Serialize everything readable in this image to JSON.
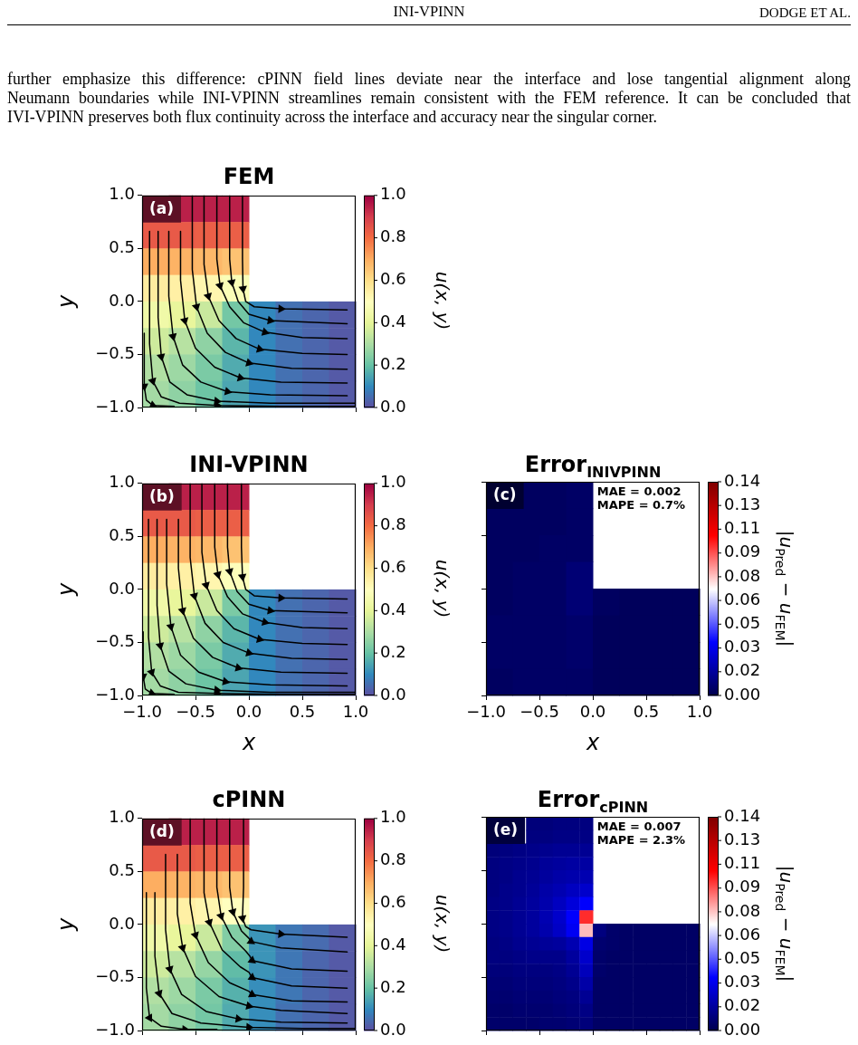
{
  "chart_data": [
    {
      "type": "heatmap",
      "title": "FEM",
      "ylabel": "y",
      "clabel": "u(x, y)",
      "tick_labels": "y",
      "annotations": [
        "(a)",
        "INI-VPINN",
        "DODGE ET AL.",
        "further emphasize this difference: cPINN field lines deviate near the interface and lose tangential alignment along",
        "Neumann boundaries while INI-VPINN streamlines remain consistent with the FEM reference. It can be concluded that",
        "IVI-VPINN preserves both flux continuity across the interface and accuracy near the singular corner."
      ],
      "x": [
        -0.875,
        -0.625,
        -0.375,
        -0.125,
        0.125,
        0.375,
        0.625,
        0.875
      ],
      "xlim": [
        -1,
        1
      ],
      "xticks": [
        {
          "value": -1,
          "label": null
        },
        {
          "value": -0.5,
          "label": null
        },
        {
          "value": 0,
          "label": null
        },
        {
          "value": 0.5,
          "label": null
        },
        {
          "value": 1,
          "label": null
        }
      ],
      "ylim": [
        -1,
        1
      ],
      "yticks": [
        {
          "value": -1,
          "label": "−1.0"
        },
        {
          "value": -0.5,
          "label": "−0.5"
        },
        {
          "value": 0,
          "label": "0.0"
        },
        {
          "value": 0.5,
          "label": "0.5"
        },
        {
          "value": 1,
          "label": "1.0"
        }
      ],
      "clim": [
        0,
        1
      ],
      "cticks": [
        {
          "value": 0,
          "label": "0.0"
        },
        {
          "value": 0.2,
          "label": "0.2"
        },
        {
          "value": 0.4,
          "label": "0.4"
        },
        {
          "value": 0.6,
          "label": "0.6"
        },
        {
          "value": 0.8,
          "label": "0.8"
        },
        {
          "value": 1,
          "label": "1.0"
        }
      ],
      "colors": [
        "#5e4fa2",
        "#3288bd",
        "#66c2a5",
        "#abdda4",
        "#e6f598",
        "#ffffbf",
        "#fee08b",
        "#fdae61",
        "#f46d43",
        "#d53e4f",
        "#9e0142"
      ],
      "cells": [
        [
          null,
          0.95,
          0.95,
          0.95,
          null,
          null,
          null,
          null
        ],
        [
          0.84,
          0.84,
          0.83,
          0.83,
          null,
          null,
          null,
          null
        ],
        [
          0.7,
          0.69,
          0.68,
          0.66,
          null,
          null,
          null,
          null
        ],
        [
          0.56,
          0.55,
          0.53,
          0.48,
          null,
          null,
          null,
          null
        ],
        [
          0.44,
          0.41,
          0.35,
          0.22,
          0.1,
          0.06,
          0.04,
          0.02
        ],
        [
          0.36,
          0.32,
          0.26,
          0.18,
          0.1,
          0.06,
          0.04,
          0.02
        ],
        [
          0.31,
          0.28,
          0.23,
          0.16,
          0.1,
          0.06,
          0.04,
          0.02
        ],
        [
          0.29,
          0.26,
          0.21,
          0.15,
          0.1,
          0.06,
          0.04,
          0.02
        ]
      ],
      "series": [
        {
          "type": "line",
          "color": "#000000",
          "x": [
            -0.06,
            -0.06,
            -0.055,
            -0.03,
            0.05,
            0.3,
            0.92
          ],
          "values": [
            1,
            0.4,
            0.12,
            0,
            -0.05,
            -0.07,
            -0.08
          ]
        },
        {
          "type": "line",
          "color": "#000000",
          "x": [
            -0.18,
            -0.18,
            -0.16,
            -0.1,
            0,
            0.2,
            0.92
          ],
          "values": [
            1,
            0.4,
            0.18,
            0,
            -0.12,
            -0.18,
            -0.21
          ]
        },
        {
          "type": "line",
          "color": "#000000",
          "x": [
            -0.3,
            -0.3,
            -0.27,
            -0.18,
            -0.05,
            0.15,
            0.5,
            0.92
          ],
          "values": [
            1,
            0.4,
            0.15,
            -0.05,
            -0.2,
            -0.29,
            -0.34,
            -0.35
          ]
        },
        {
          "type": "line",
          "color": "#000000",
          "x": [
            -0.42,
            -0.42,
            -0.38,
            -0.28,
            -0.12,
            0.1,
            0.5,
            0.92
          ],
          "values": [
            1,
            0.35,
            0.05,
            -0.18,
            -0.35,
            -0.45,
            -0.49,
            -0.5
          ]
        },
        {
          "type": "line",
          "color": "#000000",
          "x": [
            -0.53,
            -0.53,
            -0.49,
            -0.39,
            -0.22,
            0,
            0.4,
            0.92
          ],
          "values": [
            1,
            0.3,
            -0.05,
            -0.3,
            -0.48,
            -0.58,
            -0.63,
            -0.64
          ]
        },
        {
          "type": "line",
          "color": "#000000",
          "x": [
            -0.64,
            -0.64,
            -0.6,
            -0.5,
            -0.32,
            -0.08,
            0.3,
            0.92
          ],
          "values": [
            0.66,
            0.2,
            -0.18,
            -0.44,
            -0.62,
            -0.72,
            -0.76,
            -0.77
          ]
        },
        {
          "type": "line",
          "color": "#000000",
          "x": [
            -0.75,
            -0.75,
            -0.71,
            -0.62,
            -0.45,
            -0.2,
            0.2,
            0.92
          ],
          "values": [
            0.66,
            0.05,
            -0.33,
            -0.6,
            -0.76,
            -0.85,
            -0.88,
            -0.89
          ]
        },
        {
          "type": "line",
          "color": "#000000",
          "x": [
            -0.85,
            -0.85,
            -0.82,
            -0.74,
            -0.58,
            -0.3,
            0.2,
            1
          ],
          "values": [
            0.66,
            -0.15,
            -0.52,
            -0.76,
            -0.88,
            -0.94,
            -0.96,
            -0.96
          ]
        },
        {
          "type": "line",
          "color": "#000000",
          "x": [
            -0.93,
            -0.93,
            -0.9,
            -0.82,
            -0.65,
            -0.3,
            0.3,
            1
          ],
          "values": [
            0.66,
            -0.4,
            -0.75,
            -0.9,
            -0.96,
            -0.98,
            -0.99,
            -0.99
          ]
        },
        {
          "type": "line",
          "color": "#000000",
          "x": [
            -0.98,
            -0.98,
            -0.96,
            -0.9,
            -0.7
          ],
          "values": [
            -0.3,
            -0.8,
            -0.93,
            -0.98,
            -0.99
          ]
        }
      ]
    },
    {
      "type": "heatmap",
      "title": "INI-VPINN",
      "xlabel": "x",
      "ylabel": "y",
      "clabel": "u(x, y)",
      "annotations": [
        "(b)"
      ],
      "x": [
        -0.875,
        -0.625,
        -0.375,
        -0.125,
        0.125,
        0.375,
        0.625,
        0.875
      ],
      "xlim": [
        -1,
        1
      ],
      "xticks": [
        {
          "value": -1,
          "label": "−1.0"
        },
        {
          "value": -0.5,
          "label": "−0.5"
        },
        {
          "value": 0,
          "label": "0.0"
        },
        {
          "value": 0.5,
          "label": "0.5"
        },
        {
          "value": 1,
          "label": "1.0"
        }
      ],
      "ylim": [
        -1,
        1
      ],
      "yticks": [
        {
          "value": -1,
          "label": "−1.0"
        },
        {
          "value": -0.5,
          "label": "−0.5"
        },
        {
          "value": 0,
          "label": "0.0"
        },
        {
          "value": 0.5,
          "label": "0.5"
        },
        {
          "value": 1,
          "label": "1.0"
        }
      ],
      "clim": [
        0,
        1
      ],
      "cticks": [
        {
          "value": 0,
          "label": "0.0"
        },
        {
          "value": 0.2,
          "label": "0.2"
        },
        {
          "value": 0.4,
          "label": "0.4"
        },
        {
          "value": 0.6,
          "label": "0.6"
        },
        {
          "value": 0.8,
          "label": "0.8"
        },
        {
          "value": 1,
          "label": "1.0"
        }
      ],
      "colors": [
        "#5e4fa2",
        "#3288bd",
        "#66c2a5",
        "#abdda4",
        "#e6f598",
        "#ffffbf",
        "#fee08b",
        "#fdae61",
        "#f46d43",
        "#d53e4f",
        "#9e0142"
      ],
      "cells": [
        [
          null,
          0.95,
          0.95,
          0.95,
          null,
          null,
          null,
          null
        ],
        [
          0.84,
          0.84,
          0.83,
          0.83,
          null,
          null,
          null,
          null
        ],
        [
          0.7,
          0.69,
          0.68,
          0.66,
          null,
          null,
          null,
          null
        ],
        [
          0.56,
          0.55,
          0.53,
          0.49,
          null,
          null,
          null,
          null
        ],
        [
          0.44,
          0.41,
          0.35,
          0.23,
          0.1,
          0.06,
          0.04,
          0.02
        ],
        [
          0.36,
          0.32,
          0.26,
          0.18,
          0.1,
          0.06,
          0.04,
          0.02
        ],
        [
          0.31,
          0.28,
          0.23,
          0.16,
          0.1,
          0.06,
          0.04,
          0.02
        ],
        [
          0.29,
          0.26,
          0.21,
          0.15,
          0.1,
          0.06,
          0.04,
          0.02
        ]
      ],
      "series": [
        {
          "type": "line",
          "color": "#000000",
          "x": [
            -0.07,
            -0.07,
            -0.06,
            -0.03,
            0.05,
            0.3,
            0.92
          ],
          "values": [
            1,
            0.4,
            0.12,
            0,
            -0.06,
            -0.08,
            -0.09
          ]
        },
        {
          "type": "line",
          "color": "#000000",
          "x": [
            -0.2,
            -0.2,
            -0.18,
            -0.11,
            0,
            0.2,
            0.92
          ],
          "values": [
            1,
            0.4,
            0.17,
            -0.02,
            -0.14,
            -0.2,
            -0.22
          ]
        },
        {
          "type": "line",
          "color": "#000000",
          "x": [
            -0.32,
            -0.32,
            -0.29,
            -0.2,
            -0.06,
            0.15,
            0.5,
            0.92
          ],
          "values": [
            1,
            0.4,
            0.14,
            -0.07,
            -0.23,
            -0.31,
            -0.36,
            -0.37
          ]
        },
        {
          "type": "line",
          "color": "#000000",
          "x": [
            -0.44,
            -0.44,
            -0.4,
            -0.3,
            -0.14,
            0.1,
            0.5,
            0.92
          ],
          "values": [
            1,
            0.35,
            0.04,
            -0.2,
            -0.37,
            -0.47,
            -0.51,
            -0.52
          ]
        },
        {
          "type": "line",
          "color": "#000000",
          "x": [
            -0.55,
            -0.55,
            -0.51,
            -0.41,
            -0.24,
            0,
            0.4,
            0.92
          ],
          "values": [
            1,
            0.3,
            -0.06,
            -0.32,
            -0.5,
            -0.6,
            -0.65,
            -0.66
          ]
        },
        {
          "type": "line",
          "color": "#000000",
          "x": [
            -0.66,
            -0.66,
            -0.62,
            -0.52,
            -0.34,
            -0.1,
            0.3,
            0.92
          ],
          "values": [
            0.66,
            0.2,
            -0.2,
            -0.46,
            -0.64,
            -0.74,
            -0.78,
            -0.79
          ]
        },
        {
          "type": "line",
          "color": "#000000",
          "x": [
            -0.77,
            -0.77,
            -0.73,
            -0.64,
            -0.47,
            -0.22,
            0.2,
            0.92
          ],
          "values": [
            0.66,
            0.05,
            -0.35,
            -0.62,
            -0.78,
            -0.87,
            -0.9,
            -0.91
          ]
        },
        {
          "type": "line",
          "color": "#000000",
          "x": [
            -0.86,
            -0.86,
            -0.83,
            -0.75,
            -0.59,
            -0.3,
            0.2,
            1
          ],
          "values": [
            0.66,
            -0.15,
            -0.53,
            -0.77,
            -0.89,
            -0.95,
            -0.97,
            -0.97
          ]
        },
        {
          "type": "line",
          "color": "#000000",
          "x": [
            -0.94,
            -0.94,
            -0.91,
            -0.83,
            -0.66,
            -0.3,
            0.3,
            1
          ],
          "values": [
            0.66,
            -0.45,
            -0.78,
            -0.91,
            -0.97,
            -0.98,
            -0.99,
            -0.99
          ]
        },
        {
          "type": "line",
          "color": "#000000",
          "x": [
            -0.99,
            -0.99,
            -0.97,
            -0.91,
            -0.7
          ],
          "values": [
            -0.4,
            -0.82,
            -0.94,
            -0.98,
            -0.99
          ]
        }
      ]
    },
    {
      "type": "heatmap",
      "title": "Error$_{INIVPINN}$",
      "xlabel": "x",
      "clabel": "|u$_{Pred}$ − u$_{FEM}$|",
      "tick_labels": "x",
      "annotations": [
        "(c)",
        "MAE = 0.002",
        "MAPE = 0.7%"
      ],
      "x": [
        -0.875,
        -0.625,
        -0.375,
        -0.125,
        0.125,
        0.375,
        0.625,
        0.875
      ],
      "xlim": [
        -1,
        1
      ],
      "xticks": [
        {
          "value": -1,
          "label": "−1.0"
        },
        {
          "value": -0.5,
          "label": "−0.5"
        },
        {
          "value": 0,
          "label": "0.0"
        },
        {
          "value": 0.5,
          "label": "0.5"
        },
        {
          "value": 1,
          "label": "1.0"
        }
      ],
      "ylim": [
        -1,
        1
      ],
      "yticks": [
        {
          "value": -1,
          "label": null
        },
        {
          "value": -0.5,
          "label": null
        },
        {
          "value": 0,
          "label": null
        },
        {
          "value": 0.5,
          "label": null
        },
        {
          "value": 1,
          "label": null
        }
      ],
      "clim": [
        0,
        0.1415
      ],
      "cticks": [
        {
          "value": 0,
          "label": "0.00"
        },
        {
          "value": 0.0157,
          "label": "0.02"
        },
        {
          "value": 0.0314,
          "label": "0.03"
        },
        {
          "value": 0.0472,
          "label": "0.05"
        },
        {
          "value": 0.0629,
          "label": "0.06"
        },
        {
          "value": 0.0786,
          "label": "0.08"
        },
        {
          "value": 0.0943,
          "label": "0.09"
        },
        {
          "value": 0.1101,
          "label": "0.11"
        },
        {
          "value": 0.1258,
          "label": "0.13"
        },
        {
          "value": 0.1415,
          "label": "0.14"
        }
      ],
      "colors": [
        "#00004c",
        "#0000ff",
        "#ffffff",
        "#ff0000",
        "#800000"
      ],
      "cells": [
        [
          null,
          0.004,
          0.004,
          0.005,
          null,
          null,
          null,
          null
        ],
        [
          0.004,
          0.004,
          0.004,
          0.005,
          null,
          null,
          null,
          null
        ],
        [
          0.004,
          0.004,
          0.005,
          0.005,
          null,
          null,
          null,
          null
        ],
        [
          0.004,
          0.005,
          0.005,
          0.008,
          null,
          null,
          null,
          null
        ],
        [
          0.004,
          0.005,
          0.005,
          0.008,
          0.004,
          0.003,
          0.003,
          0.003
        ],
        [
          0.005,
          0.005,
          0.005,
          0.006,
          0.003,
          0.003,
          0.003,
          0.003
        ],
        [
          0.005,
          0.005,
          0.005,
          0.006,
          0.003,
          0.003,
          0.003,
          0.003
        ],
        [
          0.004,
          0.005,
          0.005,
          0.005,
          0.003,
          0.003,
          0.003,
          0.003
        ]
      ]
    },
    {
      "type": "heatmap",
      "title": "cPINN",
      "ylabel": "y",
      "clabel": "u(x, y)",
      "tick_labels": "y",
      "annotations": [
        "(d)"
      ],
      "x": [
        -0.875,
        -0.625,
        -0.375,
        -0.125,
        0.125,
        0.375,
        0.625,
        0.875
      ],
      "xlim": [
        -1,
        1
      ],
      "xticks": [
        {
          "value": -1,
          "label": null
        },
        {
          "value": -0.5,
          "label": null
        },
        {
          "value": 0,
          "label": null
        },
        {
          "value": 0.5,
          "label": null
        },
        {
          "value": 1,
          "label": null
        }
      ],
      "ylim": [
        -1,
        1
      ],
      "yticks": [
        {
          "value": -1,
          "label": "−1.0"
        },
        {
          "value": -0.5,
          "label": "−0.5"
        },
        {
          "value": 0,
          "label": "0.0"
        },
        {
          "value": 0.5,
          "label": "0.5"
        },
        {
          "value": 1,
          "label": "1.0"
        }
      ],
      "clim": [
        0,
        1
      ],
      "cticks": [
        {
          "value": 0,
          "label": "0.0"
        },
        {
          "value": 0.2,
          "label": "0.2"
        },
        {
          "value": 0.4,
          "label": "0.4"
        },
        {
          "value": 0.6,
          "label": "0.6"
        },
        {
          "value": 0.8,
          "label": "0.8"
        },
        {
          "value": 1,
          "label": "1.0"
        }
      ],
      "colors": [
        "#5e4fa2",
        "#3288bd",
        "#66c2a5",
        "#abdda4",
        "#e6f598",
        "#ffffbf",
        "#fee08b",
        "#fdae61",
        "#f46d43",
        "#d53e4f",
        "#9e0142"
      ],
      "cells": [
        [
          null,
          0.95,
          0.95,
          0.95,
          null,
          null,
          null,
          null
        ],
        [
          0.84,
          0.84,
          0.83,
          0.83,
          null,
          null,
          null,
          null
        ],
        [
          0.7,
          0.69,
          0.68,
          0.66,
          null,
          null,
          null,
          null
        ],
        [
          0.56,
          0.55,
          0.53,
          0.5,
          null,
          null,
          null,
          null
        ],
        [
          0.44,
          0.41,
          0.35,
          0.24,
          0.12,
          0.07,
          0.05,
          0.02
        ],
        [
          0.36,
          0.32,
          0.27,
          0.19,
          0.12,
          0.07,
          0.04,
          0.02
        ],
        [
          0.31,
          0.28,
          0.23,
          0.17,
          0.11,
          0.07,
          0.04,
          0.02
        ],
        [
          0.29,
          0.26,
          0.22,
          0.16,
          0.11,
          0.06,
          0.04,
          0.02
        ]
      ],
      "series": [
        {
          "type": "line",
          "color": "#000000",
          "x": [
            -0.05,
            -0.05,
            -0.06,
            -0.03,
            0.02,
            0.3,
            0.92
          ],
          "values": [
            1,
            0.35,
            0.06,
            -0.02,
            -0.05,
            -0.09,
            -0.12
          ]
        },
        {
          "type": "line",
          "color": "#000000",
          "x": [
            -0.18,
            -0.18,
            -0.15,
            -0.07,
            0,
            0.02,
            0.3,
            0.92
          ],
          "values": [
            1,
            0.35,
            0.12,
            -0.06,
            -0.13,
            -0.16,
            -0.22,
            -0.26
          ]
        },
        {
          "type": "line",
          "color": "#000000",
          "x": [
            -0.3,
            -0.3,
            -0.26,
            -0.16,
            -0.03,
            0.01,
            0.03,
            0.4,
            0.92
          ],
          "values": [
            1,
            0.35,
            0.08,
            -0.12,
            -0.25,
            -0.3,
            -0.34,
            -0.42,
            -0.44
          ]
        },
        {
          "type": "line",
          "color": "#000000",
          "x": [
            -0.42,
            -0.42,
            -0.37,
            -0.25,
            -0.08,
            0,
            0.03,
            0.4,
            0.92
          ],
          "values": [
            1,
            0.3,
            0.02,
            -0.24,
            -0.4,
            -0.45,
            -0.5,
            -0.58,
            -0.6
          ]
        },
        {
          "type": "line",
          "color": "#000000",
          "x": [
            -0.55,
            -0.55,
            -0.5,
            -0.38,
            -0.18,
            0,
            0.03,
            0.4,
            0.92
          ],
          "values": [
            1,
            0.2,
            -0.1,
            -0.36,
            -0.55,
            -0.63,
            -0.66,
            -0.72,
            -0.73
          ]
        },
        {
          "type": "line",
          "color": "#000000",
          "x": [
            -0.67,
            -0.67,
            -0.62,
            -0.5,
            -0.28,
            0,
            0.3,
            0.92
          ],
          "values": [
            0.66,
            0.1,
            -0.22,
            -0.49,
            -0.68,
            -0.77,
            -0.81,
            -0.84
          ]
        },
        {
          "type": "line",
          "color": "#000000",
          "x": [
            -0.78,
            -0.78,
            -0.74,
            -0.63,
            -0.4,
            -0.1,
            0.3,
            0.92
          ],
          "values": [
            0.66,
            -0.05,
            -0.42,
            -0.66,
            -0.82,
            -0.89,
            -0.92,
            -0.93
          ]
        },
        {
          "type": "line",
          "color": "#000000",
          "x": [
            -0.88,
            -0.88,
            -0.84,
            -0.72,
            -0.45,
            0,
            0.5,
            1
          ],
          "values": [
            0.3,
            -0.3,
            -0.65,
            -0.84,
            -0.93,
            -0.97,
            -0.98,
            -0.98
          ]
        },
        {
          "type": "line",
          "color": "#000000",
          "x": [
            -0.96,
            -0.96,
            -0.93,
            -0.82,
            -0.6,
            -0.3
          ],
          "values": [
            0.3,
            -0.6,
            -0.88,
            -0.96,
            -0.99,
            -0.99
          ]
        }
      ]
    },
    {
      "type": "heatmap",
      "title": "Error$_{cPINN}$",
      "clabel": "|u$_{Pred}$ − u$_{FEM}$|",
      "tick_labels": false,
      "annotations": [
        "(e)",
        "MAE = 0.007",
        "MAPE = 2.3%"
      ],
      "x": [
        -0.9375,
        -0.8125,
        -0.6875,
        -0.5625,
        -0.4375,
        -0.3125,
        -0.1875,
        -0.0625,
        0.0625,
        0.1875,
        0.3125,
        0.4375,
        0.5625,
        0.6875,
        0.8125,
        0.9375
      ],
      "xlim": [
        -1,
        1
      ],
      "xticks": [
        {
          "value": -1,
          "label": null
        },
        {
          "value": -0.5,
          "label": null
        },
        {
          "value": 0,
          "label": null
        },
        {
          "value": 0.5,
          "label": null
        },
        {
          "value": 1,
          "label": null
        }
      ],
      "ylim": [
        -1,
        1
      ],
      "yticks": [
        {
          "value": -1,
          "label": null
        },
        {
          "value": -0.5,
          "label": null
        },
        {
          "value": 0,
          "label": null
        },
        {
          "value": 0.5,
          "label": null
        },
        {
          "value": 1,
          "label": null
        }
      ],
      "clim": [
        0,
        0.1415
      ],
      "cticks": [
        {
          "value": 0,
          "label": "0.00"
        },
        {
          "value": 0.0157,
          "label": "0.02"
        },
        {
          "value": 0.0314,
          "label": "0.03"
        },
        {
          "value": 0.0472,
          "label": "0.05"
        },
        {
          "value": 0.0629,
          "label": "0.06"
        },
        {
          "value": 0.0786,
          "label": "0.08"
        },
        {
          "value": 0.0943,
          "label": "0.09"
        },
        {
          "value": 0.1101,
          "label": "0.11"
        },
        {
          "value": 0.1258,
          "label": "0.13"
        },
        {
          "value": 0.1415,
          "label": "0.14"
        }
      ],
      "colors": [
        "#00004c",
        "#0000ff",
        "#ffffff",
        "#ff0000",
        "#800000"
      ],
      "cells": [
        [
          null,
          null,
          null,
          0.009,
          0.009,
          0.01,
          0.01,
          0.01,
          null,
          null,
          null,
          null,
          null,
          null,
          null,
          null
        ],
        [
          null,
          null,
          null,
          0.01,
          0.01,
          0.011,
          0.011,
          0.011,
          null,
          null,
          null,
          null,
          null,
          null,
          null,
          null
        ],
        [
          0.009,
          0.01,
          0.011,
          0.012,
          0.013,
          0.014,
          0.014,
          0.014,
          null,
          null,
          null,
          null,
          null,
          null,
          null,
          null
        ],
        [
          0.01,
          0.011,
          0.012,
          0.013,
          0.015,
          0.016,
          0.017,
          0.017,
          null,
          null,
          null,
          null,
          null,
          null,
          null,
          null
        ],
        [
          0.01,
          0.011,
          0.013,
          0.014,
          0.016,
          0.018,
          0.019,
          0.02,
          null,
          null,
          null,
          null,
          null,
          null,
          null,
          null
        ],
        [
          0.01,
          0.012,
          0.013,
          0.015,
          0.018,
          0.02,
          0.023,
          0.025,
          null,
          null,
          null,
          null,
          null,
          null,
          null,
          null
        ],
        [
          0.011,
          0.012,
          0.014,
          0.016,
          0.019,
          0.023,
          0.028,
          0.035,
          null,
          null,
          null,
          null,
          null,
          null,
          null,
          null
        ],
        [
          0.011,
          0.012,
          0.014,
          0.016,
          0.02,
          0.025,
          0.035,
          0.1,
          null,
          null,
          null,
          null,
          null,
          null,
          null,
          null
        ],
        [
          0.011,
          0.012,
          0.014,
          0.016,
          0.019,
          0.024,
          0.033,
          0.08,
          0.01,
          0.006,
          0.005,
          0.005,
          0.005,
          0.005,
          0.005,
          0.005
        ],
        [
          0.01,
          0.011,
          0.013,
          0.014,
          0.015,
          0.016,
          0.02,
          0.03,
          0.007,
          0.006,
          0.005,
          0.005,
          0.005,
          0.005,
          0.005,
          0.005
        ],
        [
          0.01,
          0.01,
          0.011,
          0.012,
          0.012,
          0.012,
          0.016,
          0.025,
          0.006,
          0.005,
          0.005,
          0.005,
          0.005,
          0.005,
          0.005,
          0.005
        ],
        [
          0.009,
          0.009,
          0.01,
          0.01,
          0.01,
          0.011,
          0.014,
          0.022,
          0.006,
          0.005,
          0.005,
          0.005,
          0.005,
          0.005,
          0.005,
          0.005
        ],
        [
          0.008,
          0.008,
          0.009,
          0.009,
          0.009,
          0.01,
          0.012,
          0.018,
          0.005,
          0.005,
          0.005,
          0.005,
          0.005,
          0.005,
          0.005,
          0.005
        ],
        [
          0.007,
          0.007,
          0.008,
          0.008,
          0.008,
          0.009,
          0.01,
          0.014,
          0.005,
          0.005,
          0.005,
          0.005,
          0.005,
          0.005,
          0.005,
          0.005
        ],
        [
          0.006,
          0.006,
          0.007,
          0.007,
          0.007,
          0.008,
          0.009,
          0.011,
          0.005,
          0.005,
          0.005,
          0.005,
          0.005,
          0.005,
          0.005,
          0.005
        ],
        [
          0.006,
          0.006,
          0.006,
          0.006,
          0.007,
          0.007,
          0.008,
          0.009,
          0.005,
          0.005,
          0.005,
          0.005,
          0.005,
          0.005,
          0.005,
          0.005
        ]
      ]
    }
  ]
}
